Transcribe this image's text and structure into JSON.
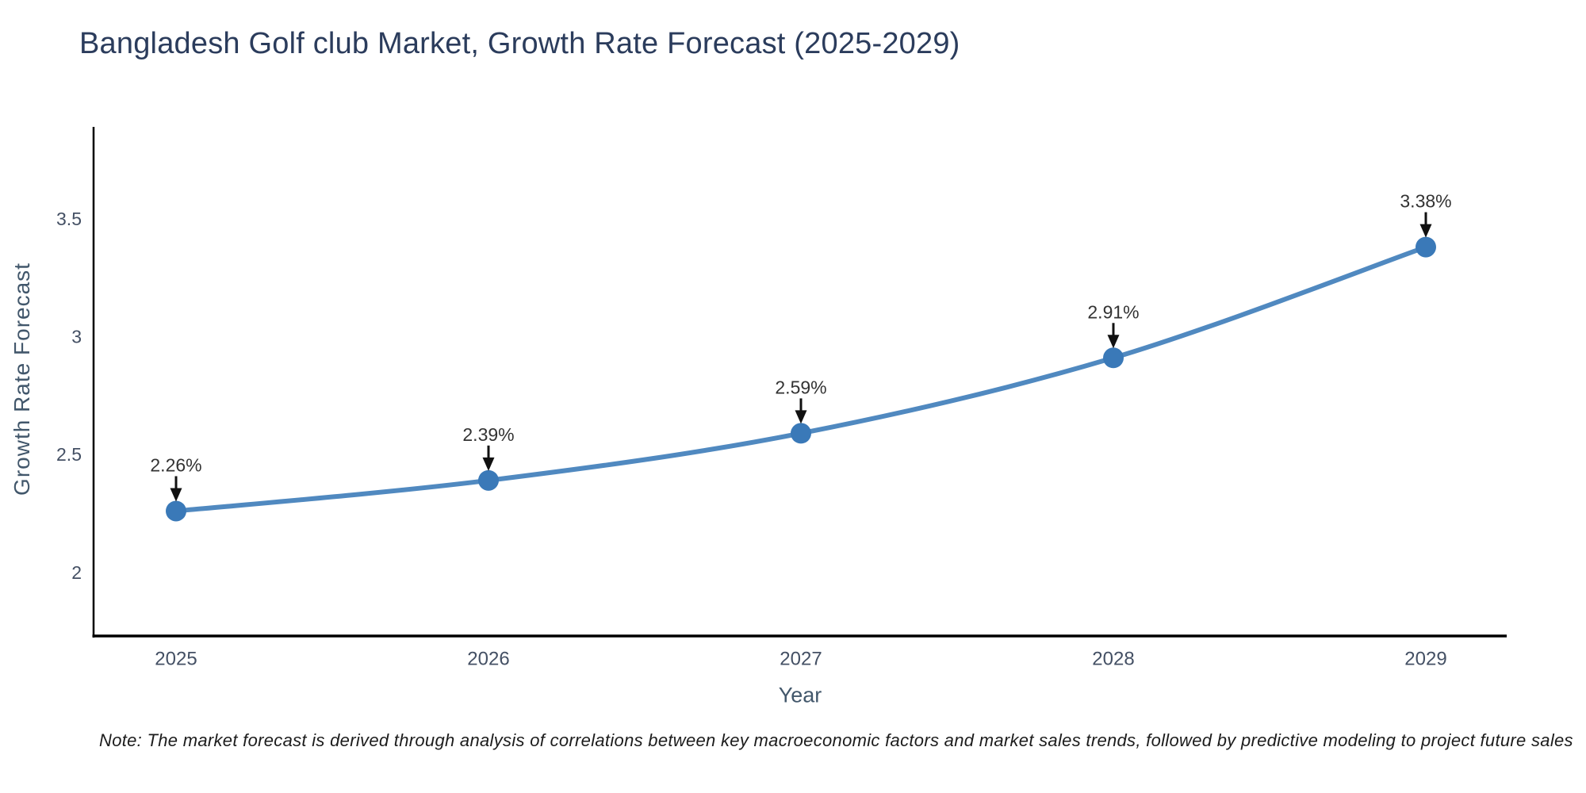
{
  "title": "Bangladesh Golf club Market, Growth Rate Forecast (2025-2029)",
  "note": "Note: The market forecast is derived through analysis of correlations between key macroeconomic factors and market sales trends, followed by predictive modeling to project future sales",
  "colors": {
    "title": "#2b3c5c",
    "axis_title": "#42576b",
    "tick_label": "#445064",
    "spine": "#000000",
    "line": "#5089c0",
    "marker": "#3a79b8",
    "annotation_text": "#333333",
    "annotation_arrow": "#111111",
    "background": "#ffffff"
  },
  "chart_data": {
    "type": "line",
    "title": "Bangladesh Golf club Market, Growth Rate Forecast (2025-2029)",
    "xlabel": "Year",
    "ylabel": "Growth Rate Forecast",
    "x": [
      2025,
      2026,
      2027,
      2028,
      2029
    ],
    "values": [
      2.26,
      2.39,
      2.59,
      2.91,
      3.38
    ],
    "point_labels": [
      "2.26%",
      "2.39%",
      "2.59%",
      "2.91%",
      "3.38%"
    ],
    "xtick_labels": [
      "2025",
      "2026",
      "2027",
      "2028",
      "2029"
    ],
    "ytick_values": [
      2,
      2.5,
      3,
      3.5
    ],
    "ytick_labels": [
      "2",
      "2.5",
      "3",
      "3.5"
    ],
    "ylim": [
      1.73,
      3.89
    ],
    "grid": false,
    "legend_position": "none",
    "line_shape": "spline",
    "annotation_style": "value label with downward arrow at each point"
  }
}
